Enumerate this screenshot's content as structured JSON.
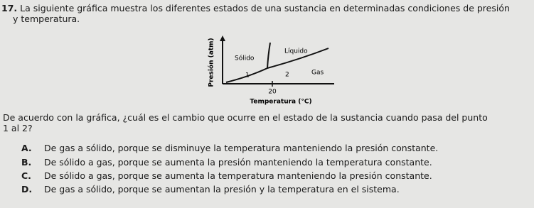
{
  "question": {
    "number": "17.",
    "intro_line1": "La siguiente gráfica muestra los diferentes estados de una sustancia en determinadas condiciones de presión",
    "intro_line2": "y temperatura.",
    "prompt_line1": "De acuerdo con la gráfica, ¿cuál es el cambio que ocurre en el estado de la sustancia cuando pasa del punto",
    "prompt_line2": "1 al 2?"
  },
  "diagram": {
    "y_label": "Presión (atm)",
    "x_label": "Temperatura (°C)",
    "solid": "Sólido",
    "liquid": "Líquido",
    "gas": "Gas",
    "point1": "1",
    "point2": "2",
    "x_tick": "20"
  },
  "options": [
    {
      "letter": "A.",
      "text": "De gas a sólido, porque se disminuye la temperatura manteniendo la presión constante."
    },
    {
      "letter": "B.",
      "text": "De sólido a gas, porque se aumenta la presión manteniendo la temperatura constante."
    },
    {
      "letter": "C.",
      "text": "De sólido a gas, porque se aumenta la temperatura manteniendo la presión constante."
    },
    {
      "letter": "D.",
      "text": "De gas a sólido, porque se aumentan la presión y la temperatura en el sistema."
    }
  ]
}
